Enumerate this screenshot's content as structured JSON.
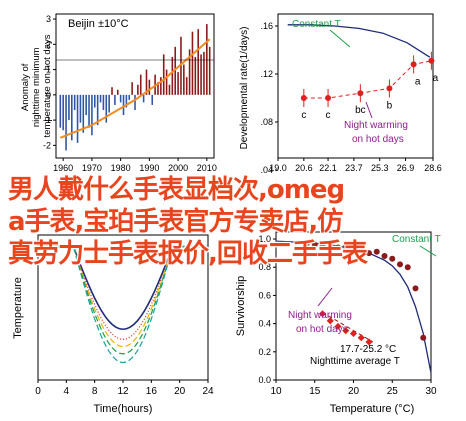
{
  "overlay": {
    "line1": "男人戴什么手表显档次,omeg",
    "line2": "a手表,宝珀手表官方专卖店,仿",
    "line3": "真劳力士手表报价,回收二手手表"
  },
  "colors": {
    "orange": "#f28c1e",
    "bar_red": "#8b1a1a",
    "bar_blue": "#2f56a6",
    "navy": "#1f2a7a",
    "red": "#e02020",
    "green": "#1e9e4a",
    "purple": "#8e1f8e",
    "yellow": "#e6b800",
    "teal": "#1aa0a0"
  },
  "chart_data": [
    {
      "panel": "top-left",
      "type": "bar",
      "title": "Beijin ±10°C",
      "ylabel": "Anomaly of nighttime minimum temperature on hot days",
      "ylim": [
        -2.5,
        3.2
      ],
      "x_ticks": [
        "1960",
        "1970",
        "1980",
        "1990",
        "2000",
        "2010"
      ],
      "y_ticks": [
        "-2",
        "-1",
        "0",
        "1",
        "2",
        "3"
      ],
      "years": [
        1959,
        1960,
        1961,
        1962,
        1963,
        1964,
        1965,
        1966,
        1967,
        1968,
        1969,
        1970,
        1971,
        1972,
        1973,
        1974,
        1975,
        1976,
        1977,
        1978,
        1979,
        1980,
        1981,
        1982,
        1983,
        1984,
        1985,
        1986,
        1987,
        1988,
        1989,
        1990,
        1991,
        1992,
        1993,
        1994,
        1995,
        1996,
        1997,
        1998,
        1999,
        2000,
        2001,
        2002,
        2003,
        2004,
        2005,
        2006,
        2007,
        2008,
        2009,
        2010,
        2011
      ],
      "values": [
        -1.3,
        -1.4,
        -2.2,
        -1.0,
        -1.8,
        -0.6,
        -1.9,
        -1.1,
        -1.5,
        -0.8,
        -1.3,
        -1.6,
        -0.5,
        -1.2,
        -0.3,
        -0.6,
        -1.1,
        -0.7,
        0.3,
        -0.4,
        0.2,
        -0.3,
        -0.8,
        -0.5,
        -0.2,
        0.5,
        -0.6,
        0.4,
        0.8,
        -0.3,
        1.0,
        0.6,
        -0.4,
        0.8,
        0.5,
        0.7,
        1.6,
        1.0,
        0.4,
        1.5,
        1.9,
        0.9,
        2.3,
        1.2,
        0.7,
        1.8,
        2.5,
        1.5,
        2.6,
        1.6,
        1.7,
        2.8,
        1.9
      ],
      "trend": {
        "x": [
          1959,
          1970,
          1985,
          1995,
          2011
        ],
        "y": [
          -1.7,
          -1.2,
          -0.2,
          0.6,
          2.2
        ]
      }
    },
    {
      "panel": "top-right",
      "type": "scatter",
      "ylabel": "Developmental rate(1/days)",
      "xlim": [
        19.0,
        28.6
      ],
      "ylim": [
        0.05,
        0.17
      ],
      "x_ticks": [
        "19.0",
        "20.6",
        "22.1",
        "23.7",
        "25.3",
        "26.9",
        "28.6"
      ],
      "y_ticks": [
        ".16",
        ".12",
        ".08",
        ".04"
      ],
      "points": [
        {
          "label": "c",
          "x": 20.6,
          "y": 0.1
        },
        {
          "label": "c",
          "x": 22.1,
          "y": 0.1
        },
        {
          "label": "bc",
          "x": 24.1,
          "y": 0.104
        },
        {
          "label": "b",
          "x": 25.9,
          "y": 0.108
        },
        {
          "label": "a",
          "x": 27.4,
          "y": 0.128
        },
        {
          "label": "a",
          "x": 28.5,
          "y": 0.131
        }
      ],
      "constant_curve": {
        "x": [
          19.6,
          21.0,
          22.5,
          24.0,
          25.5,
          27.0,
          28.4
        ],
        "y": [
          0.161,
          0.161,
          0.16,
          0.158,
          0.154,
          0.146,
          0.134
        ]
      },
      "annotations": {
        "constant": "Constant T",
        "warming_1": "Night warming",
        "warming_2": "on hot days"
      }
    },
    {
      "panel": "bottom-left",
      "type": "line",
      "xlabel": "Time(hours)",
      "ylabel": "Temperature",
      "xlim": [
        0,
        24
      ],
      "x_ticks": [
        "0",
        "4",
        "8",
        "12",
        "16",
        "20",
        "24"
      ],
      "series": [
        {
          "color": "navy",
          "minimum": 35
        },
        {
          "color": "red",
          "minimum": 28
        },
        {
          "color": "yellow",
          "minimum": 23
        },
        {
          "color": "green",
          "minimum": 18
        },
        {
          "color": "teal",
          "minimum": 12
        }
      ]
    },
    {
      "panel": "bottom-right",
      "type": "scatter",
      "xlabel": "Temperature (°C)",
      "ylabel": "Survivorship",
      "xlim": [
        10,
        30
      ],
      "ylim": [
        0,
        1.05
      ],
      "x_ticks": [
        "10",
        "15",
        "20",
        "25",
        "30"
      ],
      "y_ticks": [
        "1.0",
        "0.8",
        "0.6",
        "0.4",
        "0.2",
        "0.0"
      ],
      "constant_curve": {
        "x": [
          10,
          12,
          14,
          16,
          18,
          20,
          22,
          24,
          25,
          26,
          27,
          28,
          29,
          30
        ],
        "y": [
          0.985,
          0.98,
          0.975,
          0.965,
          0.95,
          0.93,
          0.9,
          0.85,
          0.81,
          0.75,
          0.66,
          0.52,
          0.33,
          0.05
        ]
      },
      "constant_points": {
        "x": [
          14,
          15,
          16,
          17,
          18,
          19,
          20,
          21,
          22,
          23,
          24,
          25,
          26,
          27,
          28,
          29
        ],
        "y": [
          0.97,
          0.96,
          0.95,
          0.96,
          0.94,
          0.95,
          0.92,
          0.93,
          0.9,
          0.91,
          0.88,
          0.86,
          0.82,
          0.8,
          0.65,
          0.3
        ]
      },
      "warming_points": {
        "x": [
          16,
          17,
          18,
          19,
          20,
          21,
          22
        ],
        "y": [
          0.47,
          0.42,
          0.38,
          0.35,
          0.33,
          0.3,
          0.27
        ]
      },
      "warming_line": {
        "x": [
          16,
          22.5
        ],
        "y": [
          0.48,
          0.27
        ]
      },
      "annotations": {
        "constant": "Constant T",
        "warming_1": "Night warming",
        "warming_2": "on hot days",
        "average": "17.7-25.2 °C",
        "average_2": "Nighttime average T"
      }
    }
  ]
}
